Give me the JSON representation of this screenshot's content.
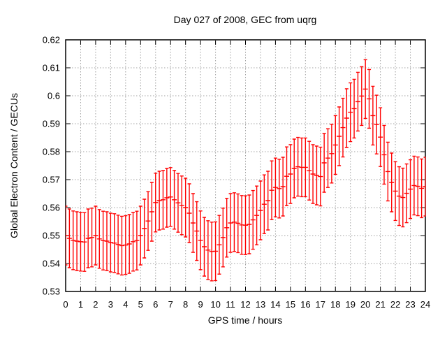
{
  "chart_data": {
    "type": "scatter",
    "style": "gnuplot-yerrorbars",
    "title": "Day 027 of 2008, GEC from uqrg",
    "xlabel": "GPS time / hours",
    "ylabel": "Global Electron Content / GECUs",
    "xlim": [
      0,
      24
    ],
    "ylim": [
      0.53,
      0.62
    ],
    "xtick_step": 1,
    "ytick_step": 0.01,
    "grid": true,
    "legend": "none",
    "series_color": "#ff0000",
    "grid_color": "#a0a0a0",
    "border_color": "#000000",
    "error_half_height": 0.0105,
    "x": [
      0,
      0.25,
      0.5,
      0.75,
      1,
      1.25,
      1.5,
      1.75,
      2,
      2.25,
      2.5,
      2.75,
      3,
      3.25,
      3.5,
      3.75,
      4,
      4.25,
      4.5,
      4.75,
      5,
      5.25,
      5.5,
      5.75,
      6,
      6.25,
      6.5,
      6.75,
      7,
      7.25,
      7.5,
      7.75,
      8,
      8.25,
      8.5,
      8.75,
      9,
      9.25,
      9.5,
      9.75,
      10,
      10.25,
      10.5,
      10.75,
      11,
      11.25,
      11.5,
      11.75,
      12,
      12.25,
      12.5,
      12.75,
      13,
      13.25,
      13.5,
      13.75,
      14,
      14.25,
      14.5,
      14.75,
      15,
      15.25,
      15.5,
      15.75,
      16,
      16.25,
      16.5,
      16.75,
      17,
      17.25,
      17.5,
      17.75,
      18,
      18.25,
      18.5,
      18.75,
      19,
      19.25,
      19.5,
      19.75,
      20,
      20.25,
      20.5,
      20.75,
      21,
      21.25,
      21.5,
      21.75,
      22,
      22.25,
      22.5,
      22.75,
      23,
      23.25,
      23.5,
      23.75,
      24
    ],
    "y": [
      0.55,
      0.549,
      0.5483,
      0.548,
      0.5478,
      0.5477,
      0.549,
      0.5493,
      0.55,
      0.5488,
      0.5482,
      0.548,
      0.5475,
      0.5473,
      0.5468,
      0.5464,
      0.5466,
      0.547,
      0.5478,
      0.5482,
      0.55,
      0.5525,
      0.5552,
      0.5585,
      0.5618,
      0.5625,
      0.5628,
      0.5635,
      0.5638,
      0.5628,
      0.5617,
      0.5608,
      0.56,
      0.558,
      0.5545,
      0.5516,
      0.5483,
      0.546,
      0.5448,
      0.5443,
      0.5444,
      0.5467,
      0.5493,
      0.5528,
      0.5545,
      0.5548,
      0.5544,
      0.5538,
      0.5537,
      0.554,
      0.5556,
      0.5572,
      0.559,
      0.5612,
      0.5625,
      0.5662,
      0.5672,
      0.5668,
      0.5675,
      0.5712,
      0.572,
      0.574,
      0.5746,
      0.5744,
      0.5744,
      0.5732,
      0.572,
      0.5715,
      0.5711,
      0.576,
      0.5777,
      0.5793,
      0.5824,
      0.5855,
      0.5886,
      0.592,
      0.5941,
      0.5954,
      0.5979,
      0.5999,
      0.6024,
      0.5989,
      0.5929,
      0.5897,
      0.5852,
      0.5789,
      0.5729,
      0.569,
      0.5659,
      0.5641,
      0.5636,
      0.5651,
      0.5666,
      0.5679,
      0.5676,
      0.5669,
      0.5675
    ]
  }
}
